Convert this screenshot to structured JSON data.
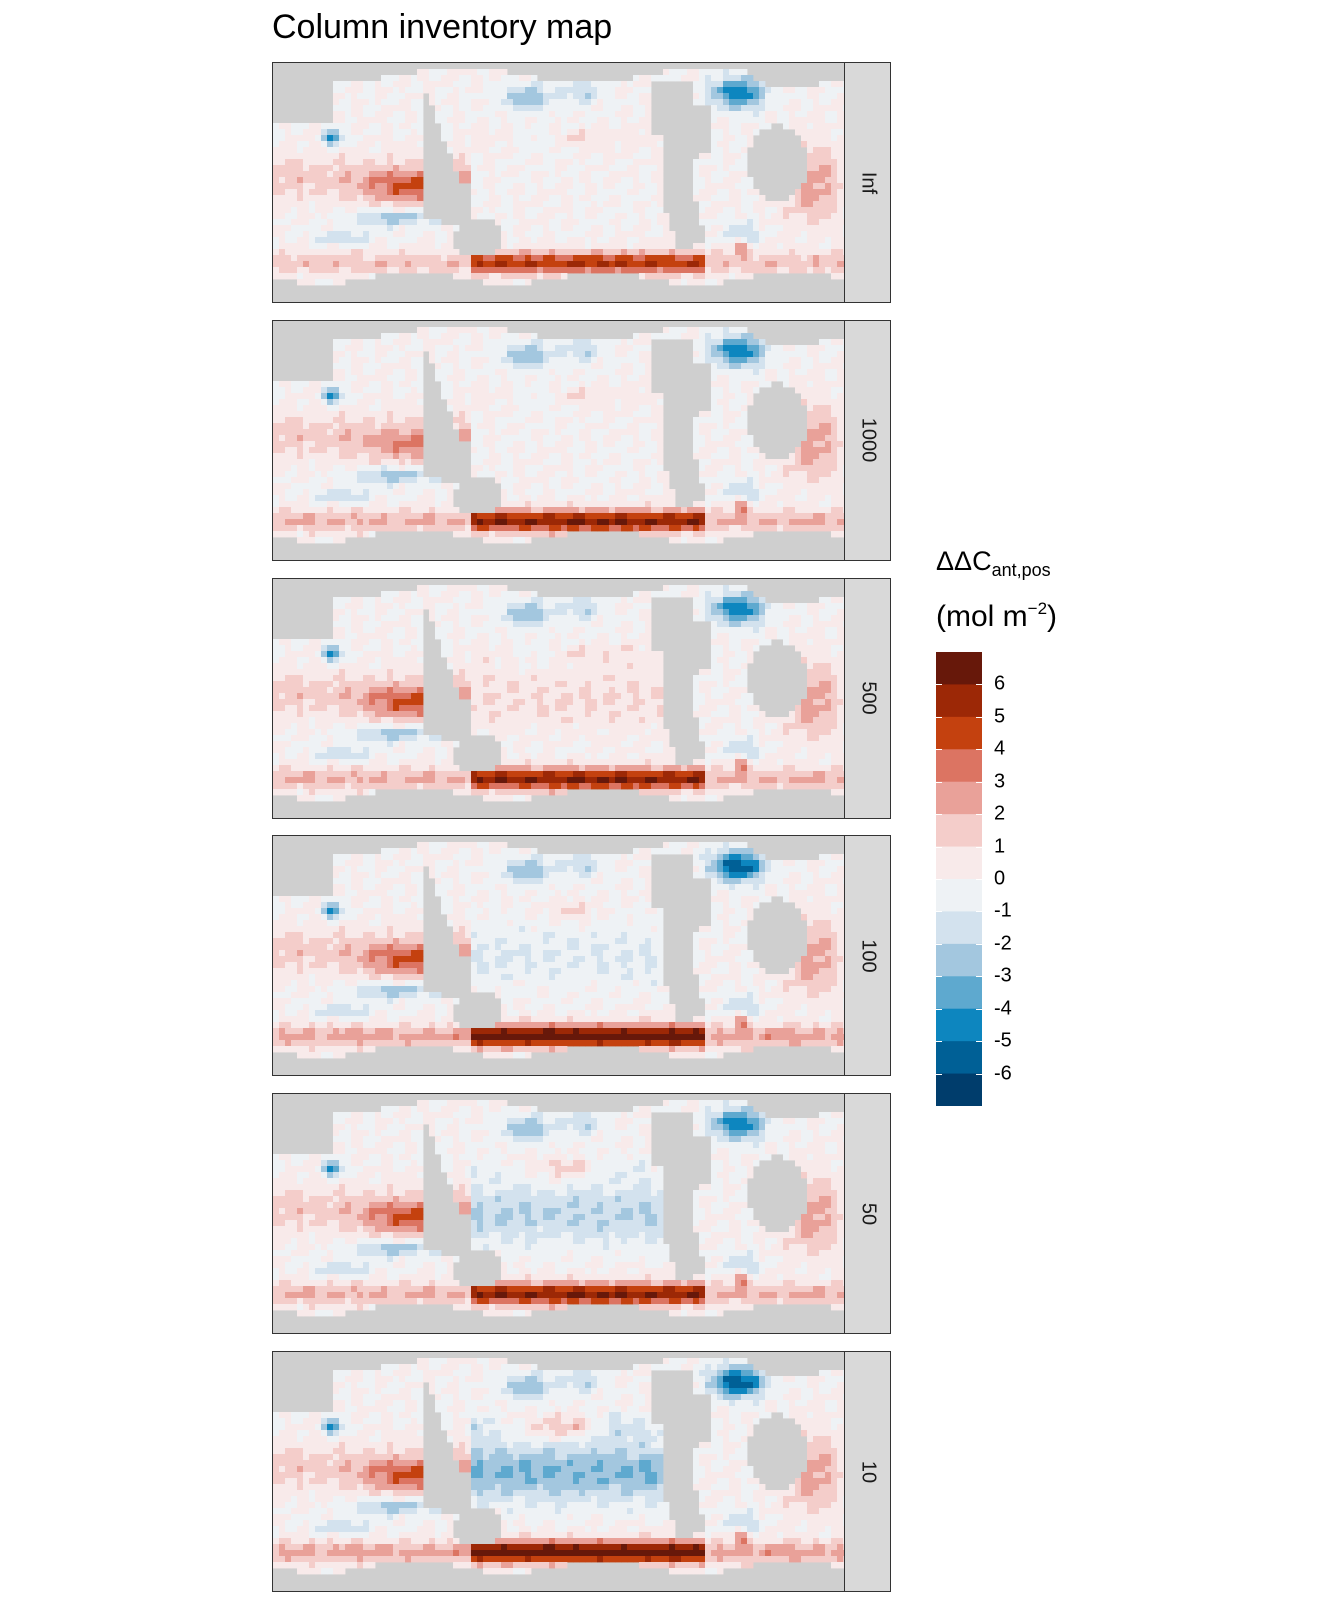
{
  "title": "Column inventory map",
  "legend": {
    "title_main": "ΔΔC",
    "title_sub": "ant,pos",
    "unit_main": "(mol m",
    "unit_sup": "−2",
    "unit_close": ")",
    "bins": [
      {
        "color": "#67180a"
      },
      {
        "color": "#9c2806"
      },
      {
        "color": "#c4410f"
      },
      {
        "color": "#dc7462"
      },
      {
        "color": "#e9a199"
      },
      {
        "color": "#f4cdca"
      },
      {
        "color": "#f8eaea"
      },
      {
        "color": "#eef2f5"
      },
      {
        "color": "#d3e2ee"
      },
      {
        "color": "#a3c7df"
      },
      {
        "color": "#5ea9cf"
      },
      {
        "color": "#0d86bf"
      },
      {
        "color": "#006096"
      },
      {
        "color": "#003d6c"
      }
    ],
    "ticks": [
      "6",
      "5",
      "4",
      "3",
      "2",
      "1",
      "0",
      "-1",
      "-2",
      "-3",
      "-4",
      "-5",
      "-6"
    ]
  },
  "colors": {
    "land": "#cfcfcf",
    "strip": "#d9d9d9"
  },
  "panels": [
    {
      "label": "Inf",
      "sh_max": 5,
      "pac_lo": 0,
      "natl": -5,
      "io": 3,
      "pac_mid": 1
    },
    {
      "label": "1000",
      "sh_max": 6,
      "pac_lo": 0,
      "natl": -5,
      "io": 2,
      "pac_mid": 1
    },
    {
      "label": "500",
      "sh_max": 6,
      "pac_lo": 1,
      "natl": -5,
      "io": 3,
      "pac_mid": 1
    },
    {
      "label": "100",
      "sh_max": 7,
      "pac_lo": -1,
      "natl": -6,
      "io": 3,
      "pac_mid": 0
    },
    {
      "label": "50",
      "sh_max": 6,
      "pac_lo": -2,
      "natl": -5,
      "io": 3,
      "pac_mid": -1
    },
    {
      "label": "10",
      "sh_max": 7,
      "pac_lo": -3,
      "natl": -6,
      "io": 3,
      "pac_mid": -2
    }
  ]
}
